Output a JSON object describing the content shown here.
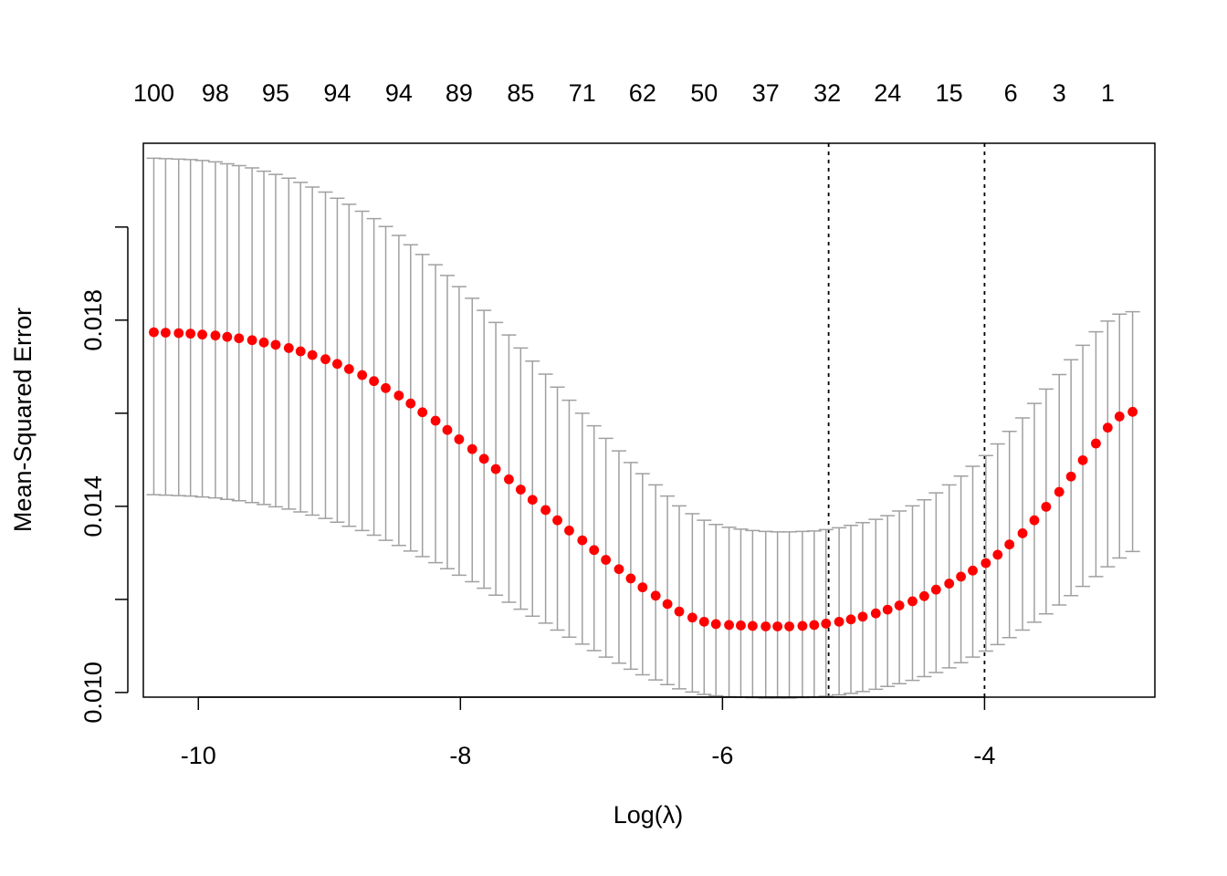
{
  "chart_data": {
    "type": "scatter",
    "xlabel": "Log(λ)",
    "ylabel": "Mean-Squared Error",
    "xlim": [
      -10.42,
      -2.7
    ],
    "ylim": [
      0.0099,
      0.0218
    ],
    "x_ticks": [
      -10,
      -8,
      -6,
      -4
    ],
    "x_tick_labels": [
      "-10",
      "-8",
      "-6",
      "-4"
    ],
    "y_ticks": [
      0.01,
      0.012,
      0.014,
      0.016,
      0.018,
      0.02
    ],
    "y_tick_labels": [
      "0.010",
      "",
      "0.014",
      "",
      "0.018",
      ""
    ],
    "top_axis": {
      "x": [
        -10.34,
        -9.87,
        -9.41,
        -8.94,
        -8.47,
        -8.01,
        -7.54,
        -7.07,
        -6.61,
        -6.14,
        -5.67,
        -5.2,
        -4.74,
        -4.27,
        -3.8,
        -3.43,
        -3.06
      ],
      "labels": [
        "100",
        "98",
        "95",
        "94",
        "94",
        "89",
        "85",
        "71",
        "62",
        "50",
        "37",
        "32",
        "24",
        "15",
        "6",
        "3",
        "1"
      ]
    },
    "vlines": [
      -5.19,
      -4.0
    ],
    "grid": false,
    "point_color": "#ff0000",
    "errorbar_color": "#a0a0a0",
    "series": [
      {
        "x": [
          -10.34,
          -10.25,
          -10.15,
          -10.06,
          -9.97,
          -9.87,
          -9.78,
          -9.69,
          -9.59,
          -9.5,
          -9.41,
          -9.31,
          -9.22,
          -9.13,
          -9.03,
          -8.94,
          -8.85,
          -8.75,
          -8.66,
          -8.57,
          -8.47,
          -8.38,
          -8.29,
          -8.19,
          -8.1,
          -8.01,
          -7.91,
          -7.82,
          -7.73,
          -7.63,
          -7.54,
          -7.45,
          -7.35,
          -7.26,
          -7.17,
          -7.07,
          -6.98,
          -6.89,
          -6.79,
          -6.7,
          -6.61,
          -6.51,
          -6.42,
          -6.33,
          -6.23,
          -6.14,
          -6.05,
          -5.95,
          -5.86,
          -5.77,
          -5.67,
          -5.58,
          -5.49,
          -5.39,
          -5.3,
          -5.21,
          -5.11,
          -5.02,
          -4.93,
          -4.83,
          -4.74,
          -4.65,
          -4.55,
          -4.46,
          -4.37,
          -4.27,
          -4.18,
          -4.09,
          -3.99,
          -3.9,
          -3.81,
          -3.71,
          -3.62,
          -3.53,
          -3.43,
          -3.34,
          -3.25,
          -3.15,
          -3.06,
          -2.97,
          -2.87
        ],
        "y": [
          0.01774,
          0.01773,
          0.01772,
          0.01771,
          0.01769,
          0.01767,
          0.01764,
          0.01761,
          0.01757,
          0.01752,
          0.01747,
          0.0174,
          0.01733,
          0.01725,
          0.01716,
          0.01706,
          0.01695,
          0.01682,
          0.01669,
          0.01654,
          0.01638,
          0.01621,
          0.01602,
          0.01584,
          0.01564,
          0.01544,
          0.01523,
          0.01502,
          0.0148,
          0.01458,
          0.01436,
          0.01414,
          0.01392,
          0.0137,
          0.01348,
          0.01327,
          0.01306,
          0.01285,
          0.01265,
          0.01245,
          0.01226,
          0.01208,
          0.0119,
          0.01174,
          0.01161,
          0.01152,
          0.01147,
          0.01145,
          0.01144,
          0.01143,
          0.01142,
          0.01142,
          0.01142,
          0.01143,
          0.01145,
          0.01148,
          0.01152,
          0.01157,
          0.01163,
          0.0117,
          0.01178,
          0.01187,
          0.01196,
          0.01207,
          0.01221,
          0.01234,
          0.01249,
          0.01262,
          0.01278,
          0.01296,
          0.01318,
          0.01342,
          0.0137,
          0.01399,
          0.01431,
          0.01464,
          0.01499,
          0.01535,
          0.01569,
          0.01593,
          0.01603
        ],
        "upper": [
          0.02148,
          0.02147,
          0.02146,
          0.02145,
          0.02143,
          0.0214,
          0.02136,
          0.02132,
          0.02127,
          0.0212,
          0.02113,
          0.02105,
          0.02096,
          0.02086,
          0.02075,
          0.02062,
          0.02049,
          0.02034,
          0.02018,
          0.02001,
          0.01982,
          0.01962,
          0.01941,
          0.01919,
          0.01896,
          0.01872,
          0.01847,
          0.01821,
          0.01795,
          0.01768,
          0.0174,
          0.01712,
          0.01684,
          0.01656,
          0.01628,
          0.016,
          0.01573,
          0.01546,
          0.01519,
          0.01494,
          0.0147,
          0.01446,
          0.01422,
          0.01401,
          0.01384,
          0.0137,
          0.01361,
          0.01355,
          0.01351,
          0.01348,
          0.01346,
          0.01345,
          0.01345,
          0.01346,
          0.01347,
          0.0135,
          0.01354,
          0.01359,
          0.01365,
          0.01372,
          0.0138,
          0.0139,
          0.01401,
          0.01414,
          0.01429,
          0.01446,
          0.01465,
          0.01486,
          0.01509,
          0.01534,
          0.01561,
          0.0159,
          0.01621,
          0.01652,
          0.01683,
          0.01715,
          0.01746,
          0.01775,
          0.01798,
          0.01813,
          0.01818
        ],
        "lower": [
          0.01425,
          0.01424,
          0.01423,
          0.01422,
          0.0142,
          0.01418,
          0.01415,
          0.01412,
          0.01408,
          0.01404,
          0.01399,
          0.01394,
          0.01388,
          0.01381,
          0.01374,
          0.01366,
          0.01357,
          0.01348,
          0.01338,
          0.01327,
          0.01316,
          0.01304,
          0.01292,
          0.01279,
          0.01266,
          0.01252,
          0.01238,
          0.01224,
          0.01209,
          0.01194,
          0.01179,
          0.01164,
          0.01149,
          0.01134,
          0.01119,
          0.01104,
          0.0109,
          0.01076,
          0.01063,
          0.0105,
          0.01038,
          0.01027,
          0.01017,
          0.01008,
          0.01001,
          0.00996,
          0.00993,
          0.00991,
          0.0099,
          0.00989,
          0.00988,
          0.00988,
          0.00988,
          0.00989,
          0.0099,
          0.00992,
          0.00995,
          0.00998,
          0.01002,
          0.01007,
          0.01013,
          0.01019,
          0.01026,
          0.01034,
          0.01043,
          0.01053,
          0.01064,
          0.01076,
          0.01089,
          0.01103,
          0.01118,
          0.01134,
          0.01151,
          0.01169,
          0.01188,
          0.01208,
          0.01228,
          0.01249,
          0.0127,
          0.01289,
          0.01303
        ]
      }
    ]
  }
}
